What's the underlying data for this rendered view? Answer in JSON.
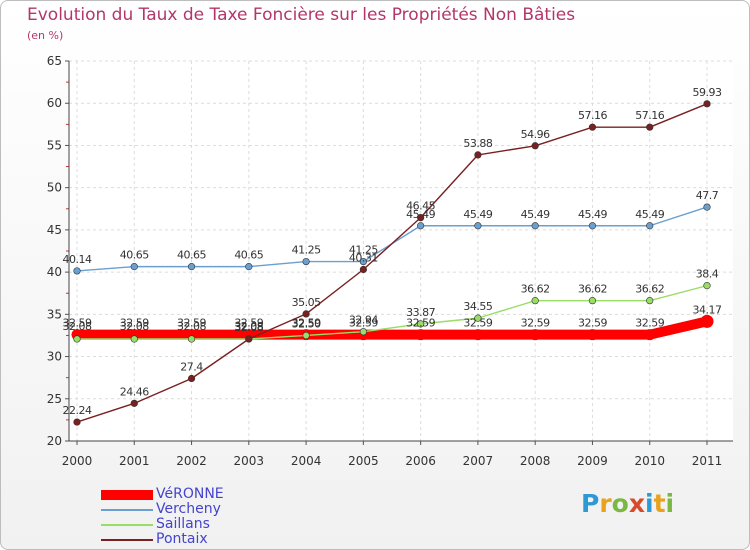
{
  "header": {
    "title": "Evolution du Taux de Taxe Foncière sur les Propriétés Non Bâties",
    "unit": "(en %)"
  },
  "brand": {
    "letters": [
      "P",
      "r",
      "o",
      "x",
      "i",
      "t",
      "i"
    ],
    "colors": [
      "#2d9ad6",
      "#e8a21e",
      "#7ab843",
      "#d74a2c",
      "#2d9ad6",
      "#e8a21e",
      "#7ab843"
    ]
  },
  "chart_data": {
    "type": "line",
    "title": "Evolution du Taux de Taxe Foncière sur les Propriétés Non Bâties",
    "xlabel": "",
    "ylabel": "(en %)",
    "ylim": [
      20,
      65
    ],
    "yticks": [
      20,
      25,
      30,
      35,
      40,
      45,
      50,
      55,
      60,
      65
    ],
    "grid": true,
    "legend": "bottom-left",
    "categories": [
      "2000",
      "2001",
      "2002",
      "2003",
      "2004",
      "2005",
      "2006",
      "2007",
      "2008",
      "2009",
      "2010",
      "2011"
    ],
    "series": [
      {
        "name": "VéRONNE",
        "color": "#ff0000",
        "values": [
          32.59,
          32.59,
          32.59,
          32.59,
          32.59,
          32.59,
          32.59,
          32.59,
          32.59,
          32.59,
          32.59,
          34.17
        ],
        "labels": [
          "32.59",
          "32.59",
          "32.59",
          "32.59",
          "32.59",
          "32.59",
          "32.59",
          "32.59",
          "32.59",
          "32.59",
          "32.59",
          "34.17"
        ]
      },
      {
        "name": "Vercheny",
        "color": "#6a9fd0",
        "values": [
          40.14,
          40.65,
          40.65,
          40.65,
          41.25,
          41.25,
          45.49,
          45.49,
          45.49,
          45.49,
          45.49,
          47.7
        ],
        "labels": [
          "40.14",
          "40.65",
          "40.65",
          "40.65",
          "41.25",
          "41.25",
          "45.49",
          "45.49",
          "45.49",
          "45.49",
          "45.49",
          "47.7"
        ]
      },
      {
        "name": "Saillans",
        "color": "#99dd66",
        "values": [
          32.08,
          32.08,
          32.08,
          32.08,
          32.5,
          32.94,
          33.87,
          34.55,
          36.62,
          36.62,
          36.62,
          38.4
        ],
        "labels": [
          "32.08",
          "32.08",
          "32.08",
          "32.08",
          "32.50",
          "32.94",
          "33.87",
          "34.55",
          "36.62",
          "36.62",
          "36.62",
          "38.4"
        ]
      },
      {
        "name": "Pontaix",
        "color": "#7a2020",
        "values": [
          22.24,
          24.46,
          27.4,
          32.08,
          35.05,
          40.31,
          46.45,
          53.88,
          54.96,
          57.16,
          57.16,
          59.93
        ],
        "labels": [
          "22.24",
          "24.46",
          "27.4",
          "32.08",
          "35.05",
          "40.31",
          "46.45",
          "53.88",
          "54.96",
          "57.16",
          "57.16",
          "59.93"
        ]
      }
    ]
  }
}
